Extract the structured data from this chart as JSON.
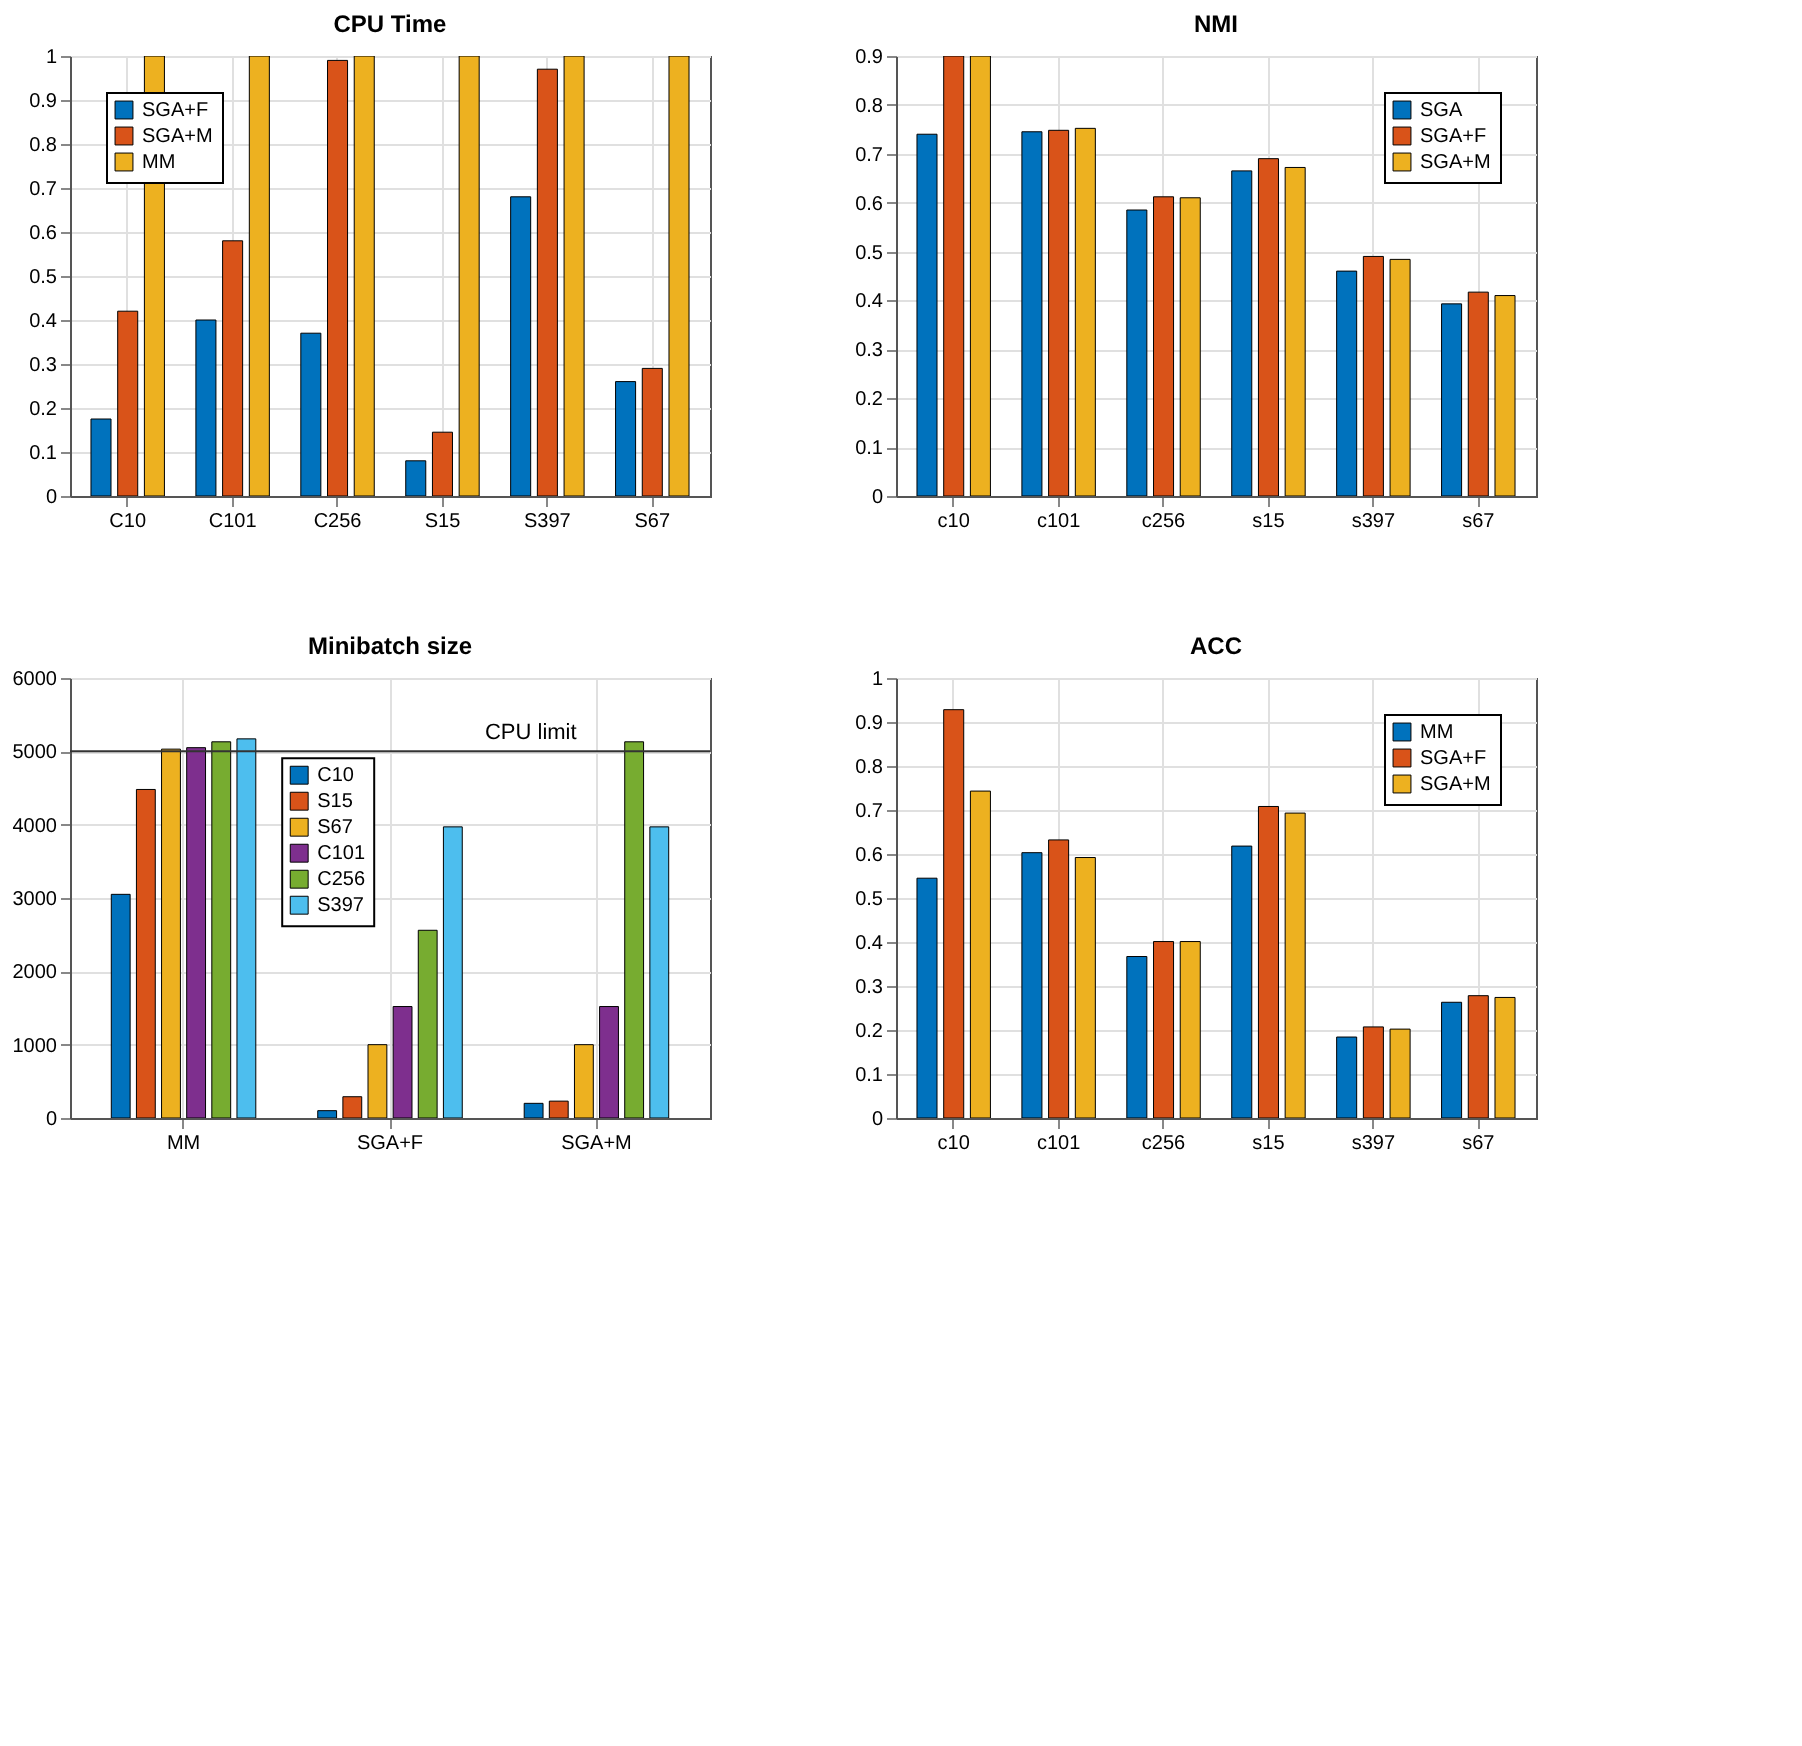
{
  "chart_data": [
    {
      "type": "bar",
      "title": "CPU Time",
      "categories": [
        "C10",
        "C101",
        "C256",
        "S15",
        "S397",
        "S67"
      ],
      "ylim": [
        0,
        1
      ],
      "yticks": [
        0,
        0.1,
        0.2,
        0.3,
        0.4,
        0.5,
        0.6,
        0.7,
        0.8,
        0.9,
        1
      ],
      "grid": true,
      "legend": "top left",
      "series": [
        {
          "name": "SGA+F",
          "color": "#0072bd",
          "values": [
            0.175,
            0.4,
            0.37,
            0.08,
            0.68,
            0.26
          ]
        },
        {
          "name": "SGA+M",
          "color": "#d95319",
          "values": [
            0.42,
            0.58,
            0.99,
            0.145,
            0.97,
            0.29
          ]
        },
        {
          "name": "MM",
          "color": "#edb120",
          "values": [
            1,
            1,
            1,
            1,
            1,
            1
          ]
        }
      ]
    },
    {
      "type": "bar",
      "title": "NMI",
      "categories": [
        "c10",
        "c101",
        "c256",
        "s15",
        "s397",
        "s67"
      ],
      "ylim": [
        0,
        0.9
      ],
      "yticks": [
        0,
        0.1,
        0.2,
        0.3,
        0.4,
        0.5,
        0.6,
        0.7,
        0.8,
        0.9
      ],
      "grid": true,
      "legend": "top right",
      "series": [
        {
          "name": "SGA",
          "color": "#0072bd",
          "values": [
            0.74,
            0.745,
            0.585,
            0.665,
            0.46,
            0.393
          ]
        },
        {
          "name": "SGA+F",
          "color": "#d95319",
          "values": [
            0.9,
            0.748,
            0.612,
            0.69,
            0.49,
            0.417
          ]
        },
        {
          "name": "SGA+M",
          "color": "#edb120",
          "values": [
            0.9,
            0.752,
            0.61,
            0.672,
            0.484,
            0.41
          ]
        }
      ]
    },
    {
      "type": "bar",
      "title": "Minibatch size",
      "categories": [
        "MM",
        "SGA+F",
        "SGA+M"
      ],
      "ylim": [
        0,
        6000
      ],
      "yticks": [
        0,
        1000,
        2000,
        3000,
        4000,
        5000,
        6000
      ],
      "grid": true,
      "legend": "top",
      "ref_lines": [
        {
          "axis": "y",
          "value": 5000,
          "label": "CPU limit"
        }
      ],
      "series": [
        {
          "name": "C10",
          "color": "#0072bd",
          "values": [
            3050,
            100,
            200
          ]
        },
        {
          "name": "S15",
          "color": "#d95319",
          "values": [
            4480,
            290,
            230
          ]
        },
        {
          "name": "S67",
          "color": "#edb120",
          "values": [
            5030,
            1000,
            1000
          ]
        },
        {
          "name": "C101",
          "color": "#7e2f8e",
          "values": [
            5050,
            1520,
            1520
          ]
        },
        {
          "name": "C256",
          "color": "#77ac30",
          "values": [
            5130,
            2560,
            5130
          ]
        },
        {
          "name": "S397",
          "color": "#4dbeee",
          "values": [
            5170,
            3970,
            3970
          ]
        }
      ]
    },
    {
      "type": "bar",
      "title": "ACC",
      "categories": [
        "c10",
        "c101",
        "c256",
        "s15",
        "s397",
        "s67"
      ],
      "ylim": [
        0,
        1
      ],
      "yticks": [
        0,
        0.1,
        0.2,
        0.3,
        0.4,
        0.5,
        0.6,
        0.7,
        0.8,
        0.9,
        1
      ],
      "grid": true,
      "legend": "top right",
      "series": [
        {
          "name": "MM",
          "color": "#0072bd",
          "values": [
            0.545,
            0.603,
            0.367,
            0.618,
            0.184,
            0.263
          ]
        },
        {
          "name": "SGA+F",
          "color": "#d95319",
          "values": [
            0.928,
            0.632,
            0.401,
            0.708,
            0.207,
            0.278
          ]
        },
        {
          "name": "SGA+M",
          "color": "#edb120",
          "values": [
            0.743,
            0.592,
            0.401,
            0.693,
            0.202,
            0.274
          ]
        }
      ]
    }
  ]
}
